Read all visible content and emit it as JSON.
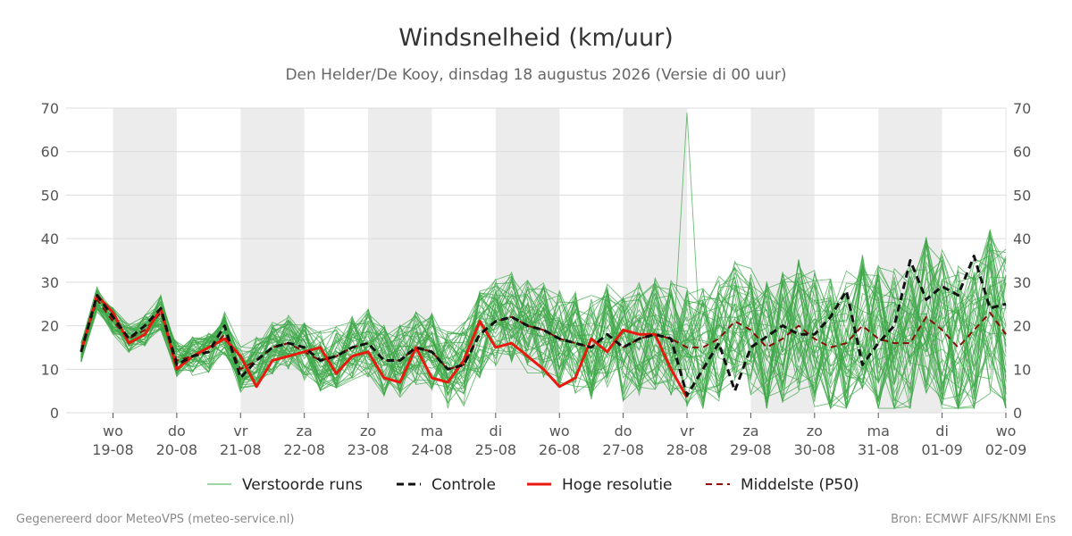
{
  "chart_data": {
    "type": "line",
    "title": "Windsnelheid (km/uur)",
    "subtitle": "Den Helder/De Kooy, dinsdag 18 augustus 2026 (Versie di 00 uur)",
    "xlabel": "",
    "ylabel": "",
    "ylim": [
      0,
      70
    ],
    "yticks": [
      0,
      10,
      20,
      30,
      40,
      50,
      60,
      70
    ],
    "x_axis_unit": "days since 18-08 00h",
    "xlim": [
      0.5,
      15
    ],
    "grid": true,
    "legend_placement": "bottom",
    "day_ticks": [
      {
        "x": 1,
        "day": "wo",
        "date": "19-08"
      },
      {
        "x": 2,
        "day": "do",
        "date": "20-08"
      },
      {
        "x": 3,
        "day": "vr",
        "date": "21-08"
      },
      {
        "x": 4,
        "day": "za",
        "date": "22-08"
      },
      {
        "x": 5,
        "day": "zo",
        "date": "23-08"
      },
      {
        "x": 6,
        "day": "ma",
        "date": "24-08"
      },
      {
        "x": 7,
        "day": "di",
        "date": "25-08"
      },
      {
        "x": 8,
        "day": "wo",
        "date": "26-08"
      },
      {
        "x": 9,
        "day": "do",
        "date": "27-08"
      },
      {
        "x": 10,
        "day": "vr",
        "date": "28-08"
      },
      {
        "x": 11,
        "day": "za",
        "date": "29-08"
      },
      {
        "x": 12,
        "day": "zo",
        "date": "30-08"
      },
      {
        "x": 13,
        "day": "ma",
        "date": "31-08"
      },
      {
        "x": 14,
        "day": "di",
        "date": "01-09"
      },
      {
        "x": 15,
        "day": "wo",
        "date": "02-09"
      }
    ],
    "shaded_bands": [
      [
        1,
        2
      ],
      [
        3,
        4
      ],
      [
        5,
        6
      ],
      [
        7,
        8
      ],
      [
        9,
        10
      ],
      [
        11,
        12
      ],
      [
        13,
        14
      ]
    ],
    "series": [
      {
        "name": "Controle",
        "color": "#111111",
        "style": "dashed",
        "x": [
          0.5,
          0.75,
          1.0,
          1.25,
          1.5,
          1.75,
          2.0,
          2.25,
          2.5,
          2.75,
          3.0,
          3.25,
          3.5,
          3.75,
          4.0,
          4.25,
          4.5,
          4.75,
          5.0,
          5.25,
          5.5,
          5.75,
          6.0,
          6.25,
          6.5,
          6.75,
          7.0,
          7.25,
          7.5,
          7.75,
          8.0,
          8.25,
          8.5,
          8.75,
          9.0,
          9.25,
          9.5,
          9.75,
          10.0,
          10.5,
          10.75,
          11.0,
          11.5,
          11.75,
          12.0,
          12.25,
          12.5,
          12.75,
          13.0,
          13.25,
          13.5,
          13.75,
          14.0,
          14.25,
          14.5,
          14.75,
          15.0
        ],
        "values": [
          14,
          27,
          22,
          17,
          20,
          24,
          11,
          13,
          14,
          20,
          8,
          12,
          15,
          16,
          15,
          12,
          13,
          15,
          16,
          12,
          12,
          15,
          14,
          10,
          11,
          18,
          21,
          22,
          20,
          19,
          17,
          16,
          15,
          18,
          15,
          17,
          18,
          17,
          4,
          16,
          5,
          15,
          20,
          18,
          18,
          22,
          28,
          11,
          16,
          20,
          35,
          26,
          29,
          27,
          36,
          24,
          25
        ]
      },
      {
        "name": "Hoge resolutie",
        "color": "#e8190e",
        "style": "solid",
        "x": [
          0.5,
          0.75,
          1.0,
          1.25,
          1.5,
          1.75,
          2.0,
          2.25,
          2.5,
          2.75,
          3.0,
          3.25,
          3.5,
          3.75,
          4.0,
          4.25,
          4.5,
          4.75,
          5.0,
          5.25,
          5.5,
          5.75,
          6.0,
          6.25,
          6.5,
          6.75,
          7.0,
          7.25,
          7.5,
          7.75,
          8.0,
          8.25,
          8.5,
          8.75,
          9.0,
          9.25,
          9.5,
          9.75,
          10.0
        ],
        "values": [
          14,
          27,
          23,
          16,
          18,
          24,
          10,
          13,
          15,
          17,
          13,
          6,
          12,
          13,
          14,
          15,
          9,
          13,
          14,
          8,
          7,
          15,
          8,
          7,
          12,
          21,
          15,
          16,
          13,
          10,
          6,
          8,
          17,
          14,
          19,
          18,
          18,
          10,
          3.5
        ]
      },
      {
        "name": "Middelste (P50)",
        "color": "#8b0a0a",
        "style": "dashed",
        "x": [
          0.5,
          0.75,
          1.0,
          1.25,
          1.5,
          1.75,
          2.0,
          2.25,
          2.5,
          2.75,
          3.0,
          3.25,
          3.5,
          3.75,
          4.0,
          4.25,
          4.5,
          4.75,
          5.0,
          5.25,
          5.5,
          5.75,
          6.0,
          6.25,
          6.5,
          6.75,
          7.0,
          7.25,
          7.5,
          7.75,
          8.0,
          8.25,
          8.5,
          8.75,
          9.0,
          9.25,
          9.5,
          9.75,
          10.0,
          10.25,
          10.5,
          10.75,
          11.0,
          11.25,
          11.5,
          11.75,
          12.0,
          12.25,
          12.5,
          12.75,
          13.0,
          13.25,
          13.5,
          13.75,
          14.0,
          14.25,
          14.5,
          14.75,
          15.0
        ],
        "values": [
          14,
          26,
          21,
          17,
          19,
          23,
          12,
          13,
          14,
          18,
          10,
          12,
          15,
          16,
          14,
          12,
          13,
          15,
          16,
          12,
          12,
          15,
          14,
          10,
          11,
          18,
          21,
          22,
          20,
          19,
          17,
          16,
          15,
          18,
          15,
          17,
          18,
          17,
          15,
          15,
          17,
          21,
          19,
          15,
          17,
          20,
          17,
          15,
          16,
          20,
          17,
          16,
          16,
          22,
          19,
          15,
          19,
          23,
          18
        ]
      }
    ],
    "ensemble": {
      "name": "Verstoorde runs",
      "color": "#3fa84a",
      "count": 50,
      "note": "Ensemble member lines scatter around the P50 median, spread growing with forecast lead time; values roughly 0-50 km/uur, one member peaks near 69 at vr 28-08."
    },
    "legend": [
      "Verstoorde runs",
      "Controle",
      "Hoge resolutie",
      "Middelste (P50)"
    ]
  },
  "footer": {
    "left": "Gegenereerd door MeteoVPS (meteo-service.nl)",
    "right": "Bron: ECMWF AIFS/KNMI Ens"
  }
}
